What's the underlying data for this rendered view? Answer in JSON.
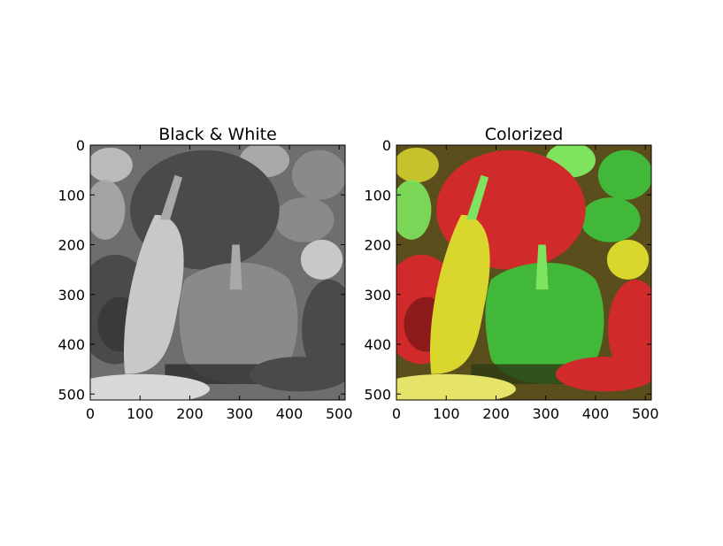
{
  "chart_data": [
    {
      "type": "image",
      "title": "Black & White",
      "image_size": [
        512,
        512
      ],
      "colormap": "grayscale",
      "xlim": [
        0,
        512
      ],
      "ylim": [
        512,
        0
      ],
      "x_ticks": [
        0,
        100,
        200,
        300,
        400,
        500
      ],
      "y_ticks": [
        0,
        100,
        200,
        300,
        400,
        500
      ],
      "x_tick_labels": [
        "0",
        "100",
        "200",
        "300",
        "400",
        "500"
      ],
      "y_tick_labels": [
        "0",
        "100",
        "200",
        "300",
        "400",
        "500"
      ],
      "grid": false
    },
    {
      "type": "image",
      "title": "Colorized",
      "image_size": [
        512,
        512
      ],
      "colormap": "rgb",
      "xlim": [
        0,
        512
      ],
      "ylim": [
        512,
        0
      ],
      "x_ticks": [
        0,
        100,
        200,
        300,
        400,
        500
      ],
      "y_ticks": [
        0,
        100,
        200,
        300,
        400,
        500
      ],
      "x_tick_labels": [
        "0",
        "100",
        "200",
        "300",
        "400",
        "500"
      ],
      "y_tick_labels": [
        "0",
        "100",
        "200",
        "300",
        "400",
        "500"
      ],
      "grid": false
    }
  ],
  "colors": {
    "bw_background": "#6e6e6e",
    "bw_pepper_dark": "#4a4a4a",
    "bw_pepper_mid": "#8a8a8a",
    "bw_pepper_light": "#c8c8c8",
    "bw_shadow": "#2e2e2e",
    "col_background": "#5a4f1c",
    "col_red": "#d12a2a",
    "col_red_dark": "#8e1b1b",
    "col_yellow": "#d9d62e",
    "col_green": "#42b83a",
    "col_green_light": "#7ee35e",
    "col_shadow": "#2d3a14"
  }
}
